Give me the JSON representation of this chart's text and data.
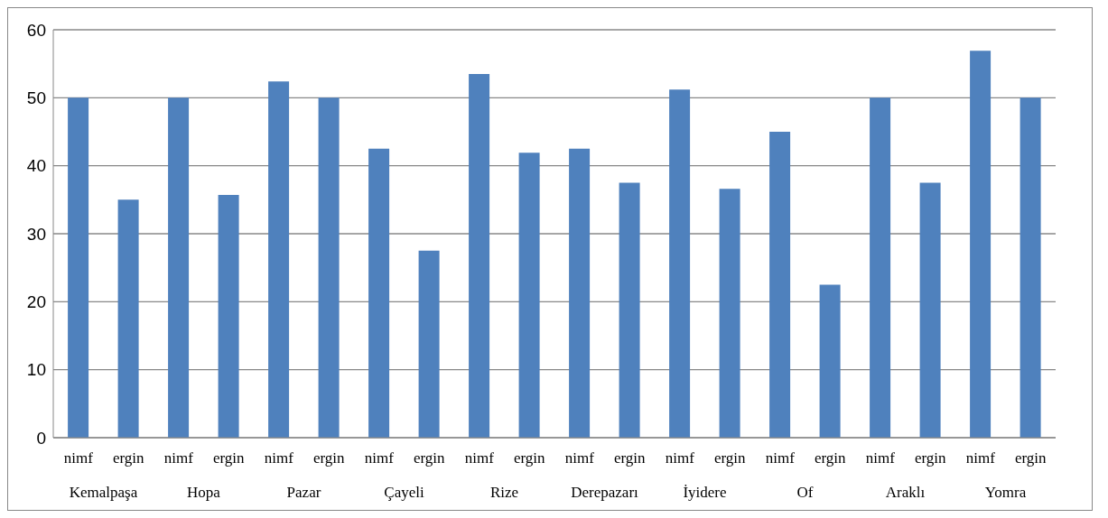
{
  "chart_data": {
    "type": "bar",
    "categories": [
      "nimf",
      "ergin",
      "nimf",
      "ergin",
      "nimf",
      "ergin",
      "nimf",
      "ergin",
      "nimf",
      "ergin",
      "nimf",
      "ergin",
      "nimf",
      "ergin",
      "nimf",
      "ergin",
      "nimf",
      "ergin",
      "nimf",
      "ergin"
    ],
    "values": [
      50,
      35,
      50,
      35.7,
      52.4,
      50,
      42.5,
      27.5,
      53.5,
      41.9,
      42.5,
      37.5,
      51.2,
      36.6,
      45,
      22.5,
      50,
      37.5,
      56.9,
      50
    ],
    "color": "#4f81bd",
    "annotations": [
      "Kemalpaşa",
      "Hopa",
      "Pazar",
      "Çayeli",
      "Rize",
      "Derepazarı",
      "İyidere",
      "Of",
      "Araklı",
      "Yomra"
    ],
    "ylim": [
      0,
      60
    ],
    "yticks": [
      0,
      10,
      20,
      30,
      40,
      50,
      60
    ],
    "grid": "y"
  }
}
